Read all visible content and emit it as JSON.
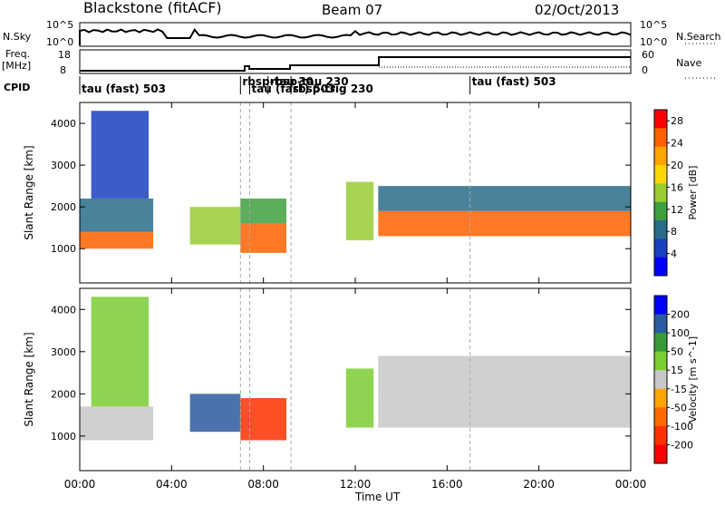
{
  "header": {
    "station": "Blackstone (fitACF)",
    "beam": "Beam 07",
    "date": "02/Oct/2013"
  },
  "top_panels": {
    "nsky_label": "N.Sky",
    "nsky_ticks": [
      "10^5",
      "10^0"
    ],
    "nsearch_label": "N.Search",
    "freq_label": "Freq.",
    "freq_unit": "[MHz]",
    "freq_ticks": [
      "18",
      "8"
    ],
    "nave_label": "Nave",
    "nave_ticks": [
      "60",
      "0"
    ],
    "cpid_label": "CPID",
    "cpid_entries": [
      {
        "label": "tau (fast) 503",
        "start": 0
      },
      {
        "label": "rbsp-tau 30",
        "start": 7.0
      },
      {
        "label": "tau (fast) 503",
        "start": 7.4
      },
      {
        "label": "rbsp-tau 230",
        "start": 8.2
      },
      {
        "label": "rbsp-trig 230",
        "start": 9.2
      },
      {
        "label": "tau (fast) 503",
        "start": 17.0
      }
    ]
  },
  "colors": {
    "power": [
      "#0000ff",
      "#1a3fbf",
      "#2a6b8a",
      "#3f9f3f",
      "#9acd32",
      "#ffd700",
      "#ffa500",
      "#ff6000",
      "#ff0000"
    ],
    "velocity": [
      "#0000ff",
      "#2a5aa0",
      "#3a9a3a",
      "#7acd32",
      "#c8c8c8",
      "#ffa500",
      "#ff6a00",
      "#ff3000",
      "#ff0000"
    ]
  },
  "chart_data": [
    {
      "type": "heatmap",
      "title": "Power",
      "ylabel": "Slant Range [km]",
      "xlabel": "Time UT",
      "xlim": [
        0,
        24
      ],
      "ylim": [
        180,
        4500
      ],
      "x_ticks": [
        "00:00",
        "04:00",
        "08:00",
        "12:00",
        "16:00",
        "20:00",
        "00:00"
      ],
      "y_ticks": [
        1000,
        2000,
        3000,
        4000
      ],
      "colorbar": {
        "label": "Power [dB]",
        "ticks": [
          4,
          8,
          12,
          16,
          20,
          24,
          28
        ],
        "range": [
          0,
          30
        ]
      },
      "mode_change_lines": [
        7.0,
        7.4,
        9.2,
        17.0
      ],
      "echo_bands": [
        {
          "t_start": 0.0,
          "t_end": 3.2,
          "range_start": 1000,
          "range_end": 1400,
          "dB": 26
        },
        {
          "t_start": 0.0,
          "t_end": 3.2,
          "range_start": 1400,
          "range_end": 2200,
          "dB": 8
        },
        {
          "t_start": 0.5,
          "t_end": 3.0,
          "range_start": 2200,
          "range_end": 4300,
          "dB": 6
        },
        {
          "t_start": 4.8,
          "t_end": 7.0,
          "range_start": 1100,
          "range_end": 2000,
          "dB": 14
        },
        {
          "t_start": 7.0,
          "t_end": 9.0,
          "range_start": 900,
          "range_end": 1600,
          "dB": 26
        },
        {
          "t_start": 7.0,
          "t_end": 9.0,
          "range_start": 1600,
          "range_end": 2200,
          "dB": 10
        },
        {
          "t_start": 11.6,
          "t_end": 12.8,
          "range_start": 1200,
          "range_end": 2600,
          "dB": 16
        },
        {
          "t_start": 13.0,
          "t_end": 24.0,
          "range_start": 1300,
          "range_end": 1900,
          "dB": 24
        },
        {
          "t_start": 13.0,
          "t_end": 24.0,
          "range_start": 1900,
          "range_end": 2500,
          "dB": 8
        }
      ]
    },
    {
      "type": "heatmap",
      "title": "Velocity",
      "ylabel": "Slant Range [km]",
      "xlabel": "Time UT",
      "xlim": [
        0,
        24
      ],
      "ylim": [
        180,
        4500
      ],
      "x_ticks": [
        "00:00",
        "04:00",
        "08:00",
        "12:00",
        "16:00",
        "20:00",
        "00:00"
      ],
      "y_ticks": [
        1000,
        2000,
        3000,
        4000
      ],
      "colorbar": {
        "label": "Velocity [m s^-1]",
        "ticks": [
          "200",
          "100",
          "50",
          "15",
          "-15",
          "-50",
          "-100",
          "-200"
        ]
      },
      "mode_change_lines": [
        7.0,
        7.4,
        9.2,
        17.0
      ],
      "echo_bands": [
        {
          "t_start": 0.0,
          "t_end": 3.2,
          "range_start": 900,
          "range_end": 1700,
          "vel": 0
        },
        {
          "t_start": 0.5,
          "t_end": 3.0,
          "range_start": 1700,
          "range_end": 4300,
          "vel": 40
        },
        {
          "t_start": 4.8,
          "t_end": 7.0,
          "range_start": 1100,
          "range_end": 2000,
          "vel": 150
        },
        {
          "t_start": 7.0,
          "t_end": 9.0,
          "range_start": 900,
          "range_end": 1900,
          "vel": -180
        },
        {
          "t_start": 11.6,
          "t_end": 12.8,
          "range_start": 1200,
          "range_end": 2600,
          "vel": 30
        },
        {
          "t_start": 13.0,
          "t_end": 24.0,
          "range_start": 1200,
          "range_end": 1900,
          "vel": 0
        },
        {
          "t_start": 13.0,
          "t_end": 24.0,
          "range_start": 1900,
          "range_end": 2900,
          "vel": 10
        }
      ]
    }
  ]
}
